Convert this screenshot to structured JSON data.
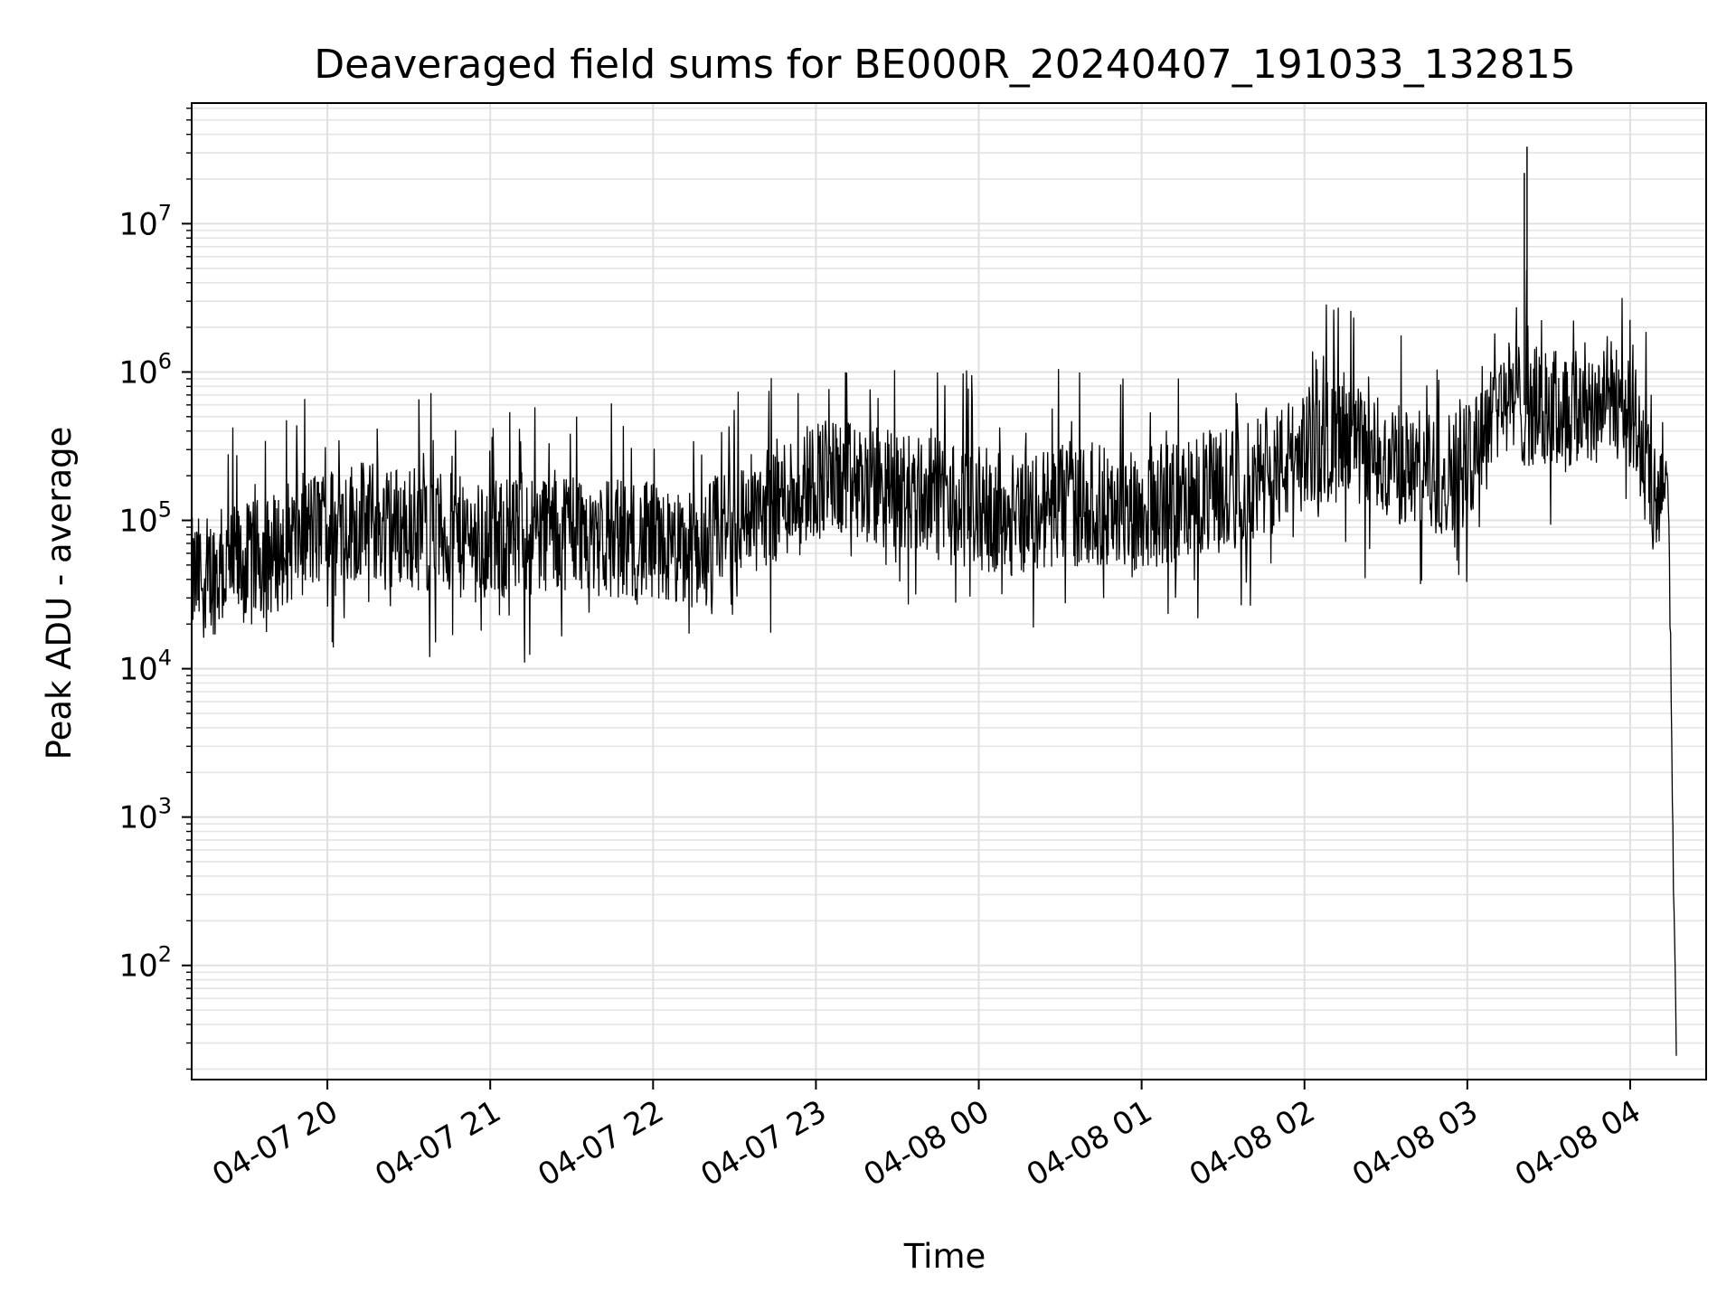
{
  "chart_data": {
    "type": "line",
    "title": "Deaveraged field sums for BE000R_20240407_191033_132815",
    "xlabel": "Time",
    "ylabel": "Peak ADU - average",
    "x_scale": "time",
    "y_scale": "log",
    "xlim": [
      "2024-04-07 19:10",
      "2024-04-08 04:28"
    ],
    "ylim": [
      17,
      65000000
    ],
    "grid": true,
    "grid_minor": true,
    "line_color": "#000000",
    "x_ticks": [
      {
        "value": "2024-04-07 20:00",
        "label": "04-07 20"
      },
      {
        "value": "2024-04-07 21:00",
        "label": "04-07 21"
      },
      {
        "value": "2024-04-07 22:00",
        "label": "04-07 22"
      },
      {
        "value": "2024-04-07 23:00",
        "label": "04-07 23"
      },
      {
        "value": "2024-04-08 00:00",
        "label": "04-08 00"
      },
      {
        "value": "2024-04-08 01:00",
        "label": "04-08 01"
      },
      {
        "value": "2024-04-08 02:00",
        "label": "04-08 02"
      },
      {
        "value": "2024-04-08 03:00",
        "label": "04-08 03"
      },
      {
        "value": "2024-04-08 04:00",
        "label": "04-08 04"
      }
    ],
    "y_ticks": [
      {
        "value": 100,
        "base": "10",
        "exp": "2"
      },
      {
        "value": 1000,
        "base": "10",
        "exp": "3"
      },
      {
        "value": 10000,
        "base": "10",
        "exp": "4"
      },
      {
        "value": 100000,
        "base": "10",
        "exp": "5"
      },
      {
        "value": 1000000,
        "base": "10",
        "exp": "6"
      },
      {
        "value": 10000000,
        "base": "10",
        "exp": "7"
      }
    ],
    "series": [
      {
        "x": [
          "2024-04-07 19:10",
          "2024-04-07 19:20",
          "2024-04-07 19:30",
          "2024-04-07 19:40",
          "2024-04-07 19:50",
          "2024-04-07 20:00",
          "2024-04-07 20:10",
          "2024-04-07 20:20",
          "2024-04-07 20:30",
          "2024-04-07 20:40",
          "2024-04-07 20:50",
          "2024-04-07 21:00",
          "2024-04-07 21:10",
          "2024-04-07 21:20",
          "2024-04-07 21:30",
          "2024-04-07 21:40",
          "2024-04-07 21:50",
          "2024-04-07 22:00",
          "2024-04-07 22:10",
          "2024-04-07 22:20",
          "2024-04-07 22:30",
          "2024-04-07 22:40",
          "2024-04-07 22:50",
          "2024-04-07 23:00",
          "2024-04-07 23:10",
          "2024-04-07 23:20",
          "2024-04-07 23:30",
          "2024-04-07 23:40",
          "2024-04-07 23:50",
          "2024-04-08 00:00",
          "2024-04-08 00:10",
          "2024-04-08 00:20",
          "2024-04-08 00:30",
          "2024-04-08 00:40",
          "2024-04-08 00:50",
          "2024-04-08 01:00",
          "2024-04-08 01:10",
          "2024-04-08 01:20",
          "2024-04-08 01:30",
          "2024-04-08 01:40",
          "2024-04-08 01:50",
          "2024-04-08 02:00",
          "2024-04-08 02:10",
          "2024-04-08 02:20",
          "2024-04-08 02:30",
          "2024-04-08 02:40",
          "2024-04-08 02:50",
          "2024-04-08 03:00",
          "2024-04-08 03:10",
          "2024-04-08 03:20",
          "2024-04-08 03:30",
          "2024-04-08 03:40",
          "2024-04-08 03:50",
          "2024-04-08 04:00",
          "2024-04-08 04:05",
          "2024-04-08 04:10",
          "2024-04-08 04:13",
          "2024-04-08 04:14",
          "2024-04-08 04:15",
          "2024-04-08 04:16",
          "2024-04-08 04:17"
        ],
        "y": [
          40000,
          45000,
          50000,
          60000,
          80000,
          90000,
          100000,
          95000,
          90000,
          85000,
          75000,
          70000,
          75000,
          85000,
          90000,
          80000,
          70000,
          70000,
          60000,
          70000,
          100000,
          120000,
          150000,
          200000,
          180000,
          170000,
          160000,
          150000,
          130000,
          120000,
          110000,
          115000,
          125000,
          130000,
          120000,
          120000,
          130000,
          150000,
          160000,
          180000,
          220000,
          300000,
          350000,
          300000,
          250000,
          220000,
          200000,
          250000,
          700000,
          600000,
          550000,
          550000,
          700000,
          600000,
          250000,
          100000,
          200000,
          150000,
          10000,
          300,
          30
        ]
      }
    ],
    "annotations": [
      {
        "x": "2024-04-08 03:22",
        "y": 33000000,
        "note": "spike"
      },
      {
        "x": "2024-04-08 03:21",
        "y": 22000000,
        "note": "spike"
      }
    ]
  }
}
